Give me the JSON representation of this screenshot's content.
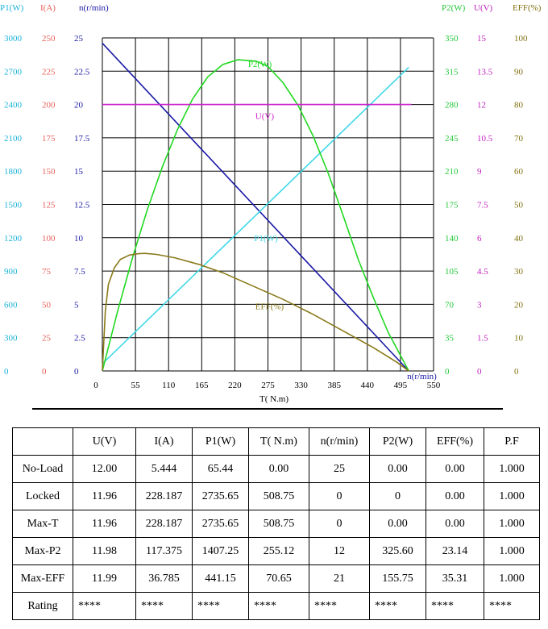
{
  "chart_data": {
    "type": "line",
    "x": {
      "label": "T( N.m)",
      "range": [
        0,
        550
      ],
      "ticks": [
        "0",
        "55",
        "110",
        "165",
        "220",
        "275",
        "330",
        "385",
        "440",
        "495",
        "550"
      ]
    },
    "y_axes": [
      {
        "id": "P1",
        "title": "P1(W)",
        "color": "#1ab2d8",
        "side": "left",
        "ticks": [
          "0",
          "300",
          "600",
          "900",
          "1200",
          "1500",
          "1800",
          "2100",
          "2400",
          "2700",
          "3000"
        ],
        "range": [
          0,
          3000
        ]
      },
      {
        "id": "I",
        "title": "I(A)",
        "color": "#e8605a",
        "side": "left",
        "ticks": [
          "0",
          "25",
          "50",
          "75",
          "100",
          "125",
          "150",
          "175",
          "200",
          "225",
          "250"
        ],
        "range": [
          0,
          250
        ]
      },
      {
        "id": "n",
        "title": "n(r/min)",
        "color": "#1a1aa6",
        "side": "left",
        "ticks": [
          "0",
          "2.5",
          "5",
          "7.5",
          "10",
          "12.5",
          "15",
          "17.5",
          "20",
          "22.5",
          "25"
        ],
        "range": [
          0,
          25
        ]
      },
      {
        "id": "P2",
        "title": "P2(W)",
        "color": "#22c83a",
        "side": "right",
        "ticks": [
          "0",
          "35",
          "70",
          "105",
          "140",
          "175",
          "210",
          "245",
          "280",
          "315",
          "350"
        ],
        "range": [
          0,
          350
        ]
      },
      {
        "id": "U",
        "title": "U(V)",
        "color": "#c020c0",
        "side": "right",
        "ticks": [
          "0",
          "1.5",
          "3",
          "4.5",
          "6",
          "7.5",
          "9",
          "10.5",
          "12",
          "13.5",
          "15"
        ],
        "range": [
          0,
          15
        ]
      },
      {
        "id": "EFF",
        "title": "EFF(%)",
        "color": "#807010",
        "side": "right",
        "ticks": [
          "0",
          "10",
          "20",
          "30",
          "40",
          "50",
          "60",
          "70",
          "80",
          "90",
          "100"
        ],
        "range": [
          0,
          100
        ]
      }
    ],
    "series": [
      {
        "name": "n(r/min)",
        "axis": "n",
        "color": "#1a1aa6",
        "label": "",
        "points": [
          [
            0,
            24.6
          ],
          [
            508.75,
            0
          ]
        ]
      },
      {
        "name": "P1(W)",
        "axis": "P1",
        "color": "#40d8e8",
        "label": "P1(W)",
        "label_at": [
          260,
          1200
        ],
        "points": [
          [
            0,
            65
          ],
          [
            508.75,
            2735.65
          ]
        ]
      },
      {
        "name": "P2(W)",
        "axis": "P2",
        "color": "#22d822",
        "label": "P2(W)",
        "label_at": [
          250,
          323
        ],
        "points": [
          [
            0,
            0
          ],
          [
            25,
            62
          ],
          [
            50,
            119
          ],
          [
            75,
            170
          ],
          [
            100,
            215
          ],
          [
            125,
            254
          ],
          [
            150,
            286
          ],
          [
            175,
            309
          ],
          [
            200,
            322
          ],
          [
            225,
            327
          ],
          [
            255,
            325.6
          ],
          [
            275,
            320
          ],
          [
            300,
            303
          ],
          [
            325,
            279
          ],
          [
            350,
            247
          ],
          [
            375,
            208
          ],
          [
            400,
            163
          ],
          [
            425,
            117
          ],
          [
            450,
            77
          ],
          [
            475,
            40
          ],
          [
            508.75,
            0
          ]
        ]
      },
      {
        "name": "U(V)",
        "axis": "U",
        "color": "#d020d0",
        "label": "U(V)",
        "label_at": [
          262,
          11.5
        ],
        "points": [
          [
            0,
            12.0
          ],
          [
            513,
            12.0
          ]
        ]
      },
      {
        "name": "EFF(%)",
        "axis": "EFF",
        "color": "#8a7a1a",
        "label": "EFF(%)",
        "label_at": [
          262,
          19.5
        ],
        "points": [
          [
            0,
            0
          ],
          [
            5,
            18
          ],
          [
            10,
            26
          ],
          [
            20,
            31
          ],
          [
            30,
            33.5
          ],
          [
            45,
            34.8
          ],
          [
            60,
            35.2
          ],
          [
            70.65,
            35.31
          ],
          [
            90,
            35
          ],
          [
            120,
            34
          ],
          [
            160,
            32
          ],
          [
            200,
            29.5
          ],
          [
            250,
            25.5
          ],
          [
            300,
            21.5
          ],
          [
            350,
            17
          ],
          [
            400,
            12
          ],
          [
            450,
            7
          ],
          [
            490,
            2.5
          ],
          [
            508.75,
            0
          ]
        ]
      }
    ],
    "annotations": [
      {
        "text": "n(r/min)",
        "color": "#1a1aa6",
        "at_x": 508.75,
        "at_n": 0
      }
    ]
  },
  "table": {
    "headers": [
      "",
      "U(V)",
      "I(A)",
      "P1(W)",
      "T( N.m)",
      "n(r/min)",
      "P2(W)",
      "EFF(%)",
      "P.F"
    ],
    "rows": [
      [
        "No-Load",
        "12.00",
        "5.444",
        "65.44",
        "0.00",
        "25",
        "0.00",
        "0.00",
        "1.000"
      ],
      [
        "Locked",
        "11.96",
        "228.187",
        "2735.65",
        "508.75",
        "0",
        "0",
        "0.00",
        "1.000"
      ],
      [
        "Max-T",
        "11.96",
        "228.187",
        "2735.65",
        "508.75",
        "0",
        "0.00",
        "0.00",
        "1.000"
      ],
      [
        "Max-P2",
        "11.98",
        "117.375",
        "1407.25",
        "255.12",
        "12",
        "325.60",
        "23.14",
        "1.000"
      ],
      [
        "Max-EFF",
        "11.99",
        "36.785",
        "441.15",
        "70.65",
        "21",
        "155.75",
        "35.31",
        "1.000"
      ],
      [
        "Rating",
        "****",
        "****",
        "****",
        "****",
        "****",
        "****",
        "****",
        "****"
      ]
    ]
  }
}
